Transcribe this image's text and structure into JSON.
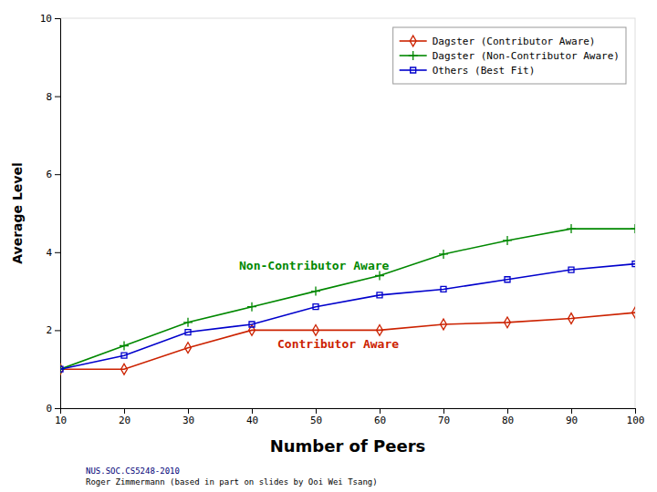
{
  "chart_data": {
    "type": "line",
    "x": [
      10,
      20,
      30,
      40,
      50,
      60,
      70,
      80,
      90,
      100
    ],
    "series": [
      {
        "name": "Dagster (Contributor Aware)",
        "color": "#cc2200",
        "marker": "diamond",
        "line_style": "solid",
        "values": [
          1.0,
          1.0,
          1.55,
          2.0,
          2.0,
          2.0,
          2.15,
          2.2,
          2.3,
          2.45
        ]
      },
      {
        "name": "Dagster (Non-Contributor Aware)",
        "color": "#008800",
        "marker": "plus",
        "line_style": "solid",
        "values": [
          1.0,
          1.6,
          2.2,
          2.6,
          3.0,
          3.4,
          3.95,
          4.3,
          4.6,
          4.6
        ]
      },
      {
        "name": "Others (Best Fit)",
        "color": "#0000cc",
        "marker": "square",
        "line_style": "solid",
        "values": [
          1.0,
          1.35,
          1.95,
          2.15,
          2.6,
          2.9,
          3.05,
          3.3,
          3.55,
          3.7
        ]
      }
    ],
    "xlabel": "Number of Peers",
    "ylabel": "Average Level",
    "xlim": [
      10,
      100
    ],
    "ylim": [
      0,
      10
    ],
    "xticks": [
      10,
      20,
      30,
      40,
      50,
      60,
      70,
      80,
      90,
      100
    ],
    "yticks": [
      0,
      2,
      4,
      6,
      8,
      10
    ],
    "grid": false,
    "legend": "upper right",
    "annotations": [
      {
        "text": "Non-Contributor Aware",
        "x": 38,
        "y": 3.55,
        "color": "#008800"
      },
      {
        "text": "Contributor Aware",
        "x": 44,
        "y": 1.55,
        "color": "#cc2200"
      }
    ],
    "footer": [
      {
        "text": "NUS.SOC.CS5248-2010",
        "color": "#000077"
      },
      {
        "text": "Roger Zimmermann (based in part on slides  by Ooi Wei Tsang)",
        "color": "#000000"
      }
    ]
  }
}
